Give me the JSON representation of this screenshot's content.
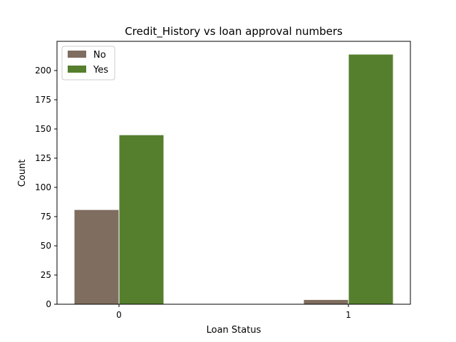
{
  "chart_data": {
    "type": "bar",
    "title": "Credit_History vs loan approval numbers",
    "xlabel": "Loan Status",
    "ylabel": "Count",
    "categories": [
      "0",
      "1"
    ],
    "series": [
      {
        "name": "No",
        "values": [
          81,
          4
        ],
        "color": "#7f6d5f"
      },
      {
        "name": "Yes",
        "values": [
          145,
          214
        ],
        "color": "#557f2d"
      }
    ],
    "ylim": [
      0,
      225
    ],
    "yticks": [
      0,
      25,
      50,
      75,
      100,
      125,
      150,
      175,
      200
    ],
    "legend": "top-left",
    "grid": false
  }
}
